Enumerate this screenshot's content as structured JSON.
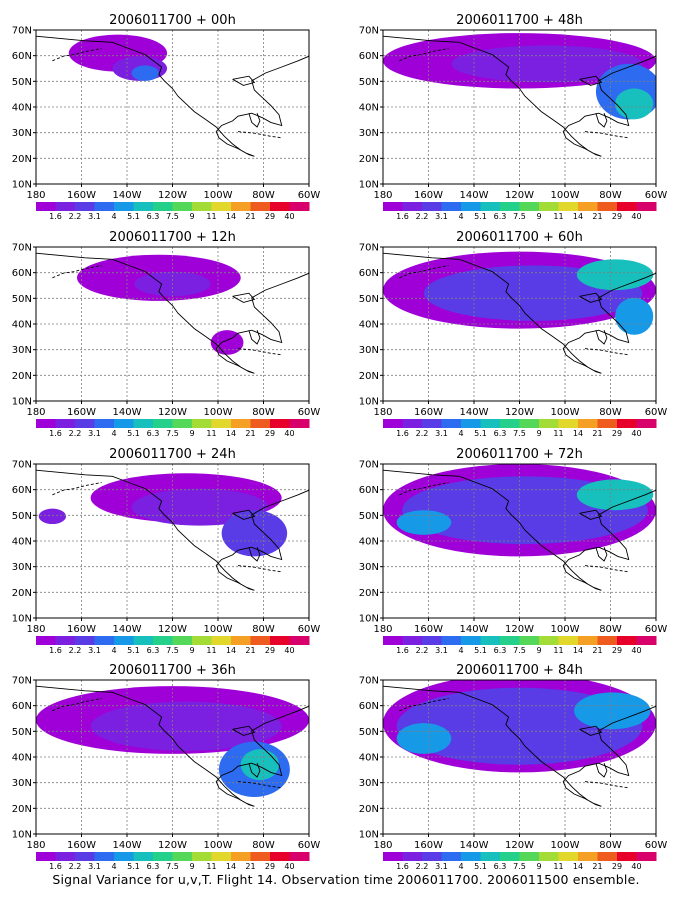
{
  "footer": "Signal Variance for u,v,T. Flight 14. Observation time 2006011700. 2006011500 ensemble.",
  "chart_data": {
    "type": "heatmap",
    "panels": [
      {
        "title": "2006011700 + 00h"
      },
      {
        "title": "2006011700 + 48h"
      },
      {
        "title": "2006011700 + 12h"
      },
      {
        "title": "2006011700 + 60h"
      },
      {
        "title": "2006011700 + 24h"
      },
      {
        "title": "2006011700 + 72h"
      },
      {
        "title": "2006011700 + 36h"
      },
      {
        "title": "2006011700 + 84h"
      }
    ],
    "x_ticks": [
      "180",
      "160W",
      "140W",
      "120W",
      "100W",
      "80W",
      "60W"
    ],
    "y_ticks": [
      "10N",
      "20N",
      "30N",
      "40N",
      "50N",
      "60N",
      "70N"
    ],
    "xlim": [
      180,
      300
    ],
    "ylim": [
      10,
      70
    ],
    "grid": true,
    "colorbar": {
      "labels": [
        "1.6",
        "2.2",
        "3.1",
        "4",
        "5.1",
        "6.3",
        "7.5",
        "9",
        "11",
        "14",
        "21",
        "29",
        "40"
      ],
      "colors": [
        "#9f00d8",
        "#7b1fe0",
        "#5a3ce6",
        "#2d6bf0",
        "#1699e6",
        "#17c0bd",
        "#25d08a",
        "#55d75a",
        "#a4dc37",
        "#e2d82c",
        "#f5a024",
        "#ef5a1e",
        "#e6002a",
        "#d8006a"
      ]
    }
  }
}
